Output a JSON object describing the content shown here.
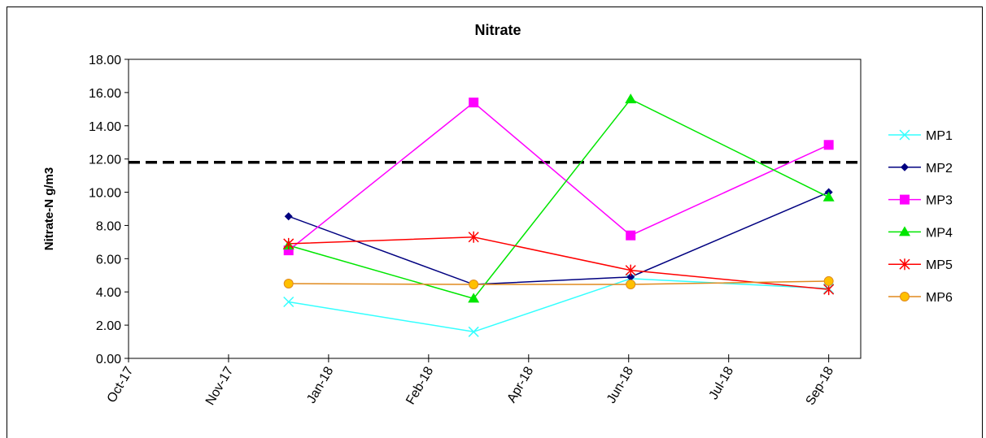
{
  "chart_data": {
    "type": "line",
    "title": "Nitrate",
    "y_label": "Nitrate-N g/m3",
    "x": [
      1.6,
      3.45,
      5.02,
      7.0
    ],
    "xlim": [
      0,
      7.32
    ],
    "xticks": [
      {
        "value": 0,
        "label": "Oct-17"
      },
      {
        "value": 1,
        "label": "Nov-17"
      },
      {
        "value": 2,
        "label": "Jan-18"
      },
      {
        "value": 3,
        "label": "Feb-18"
      },
      {
        "value": 4,
        "label": "Apr-18"
      },
      {
        "value": 5,
        "label": "Jun-18"
      },
      {
        "value": 6,
        "label": "Jul-18"
      },
      {
        "value": 7,
        "label": "Sep-18"
      }
    ],
    "ylim": [
      0,
      18
    ],
    "yticks": [
      {
        "value": 0,
        "label": "0.00"
      },
      {
        "value": 2,
        "label": "2.00"
      },
      {
        "value": 4,
        "label": "4.00"
      },
      {
        "value": 6,
        "label": "6.00"
      },
      {
        "value": 8,
        "label": "8.00"
      },
      {
        "value": 10,
        "label": "10.00"
      },
      {
        "value": 12,
        "label": "12.00"
      },
      {
        "value": 14,
        "label": "14.00"
      },
      {
        "value": 16,
        "label": "16.00"
      },
      {
        "value": 18,
        "label": "18.00"
      }
    ],
    "reference_line": {
      "value": 11.8,
      "color": "#000000",
      "dashed": true
    },
    "legend": "right",
    "series": [
      {
        "name": "MP1",
        "color": "#33ffff",
        "marker": "x",
        "values": [
          3.4,
          1.6,
          4.8,
          4.2
        ]
      },
      {
        "name": "MP2",
        "color": "#000080",
        "marker": "diamond",
        "values": [
          8.55,
          4.45,
          4.9,
          10.0
        ]
      },
      {
        "name": "MP3",
        "color": "#ff00ff",
        "marker": "square",
        "values": [
          6.5,
          15.4,
          7.4,
          12.85
        ]
      },
      {
        "name": "MP4",
        "color": "#00e600",
        "marker": "triangle",
        "values": [
          6.8,
          3.6,
          15.6,
          9.7
        ]
      },
      {
        "name": "MP5",
        "color": "#ff0000",
        "marker": "star",
        "values": [
          6.9,
          7.3,
          5.3,
          4.15
        ]
      },
      {
        "name": "MP6",
        "color": "#e08a1e",
        "marker": "circle",
        "values": [
          4.5,
          4.45,
          4.45,
          4.65
        ]
      }
    ]
  }
}
